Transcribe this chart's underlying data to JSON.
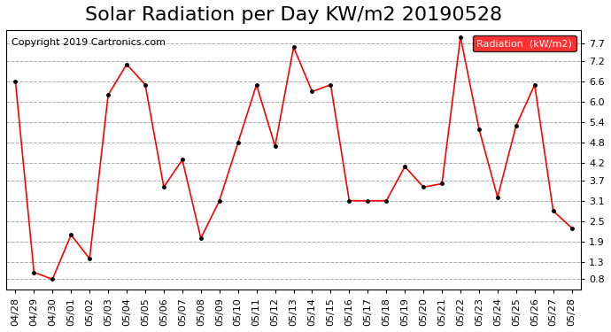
{
  "title": "Solar Radiation per Day KW/m2 20190528",
  "copyright": "Copyright 2019 Cartronics.com",
  "legend_label": "Radiation  (kW/m2)",
  "dates": [
    "04/28",
    "04/29",
    "04/30",
    "05/01",
    "05/02",
    "05/03",
    "05/04",
    "05/05",
    "05/06",
    "05/07",
    "05/08",
    "05/09",
    "05/10",
    "05/11",
    "05/12",
    "05/13",
    "05/14",
    "05/15",
    "05/16",
    "05/17",
    "05/18",
    "05/19",
    "05/20",
    "05/21",
    "05/22",
    "05/23",
    "05/24",
    "05/25",
    "05/26",
    "05/27",
    "05/28"
  ],
  "values": [
    6.6,
    1.0,
    0.8,
    2.1,
    1.4,
    6.2,
    7.1,
    6.5,
    3.5,
    4.3,
    2.0,
    3.1,
    4.8,
    6.5,
    4.7,
    7.6,
    6.3,
    6.5,
    3.1,
    3.1,
    3.1,
    4.1,
    3.5,
    3.6,
    7.9,
    5.2,
    3.2,
    5.3,
    6.5,
    2.8,
    2.3
  ],
  "line_color": "red",
  "marker_color": "black",
  "grid_color": "#aaaaaa",
  "bg_color": "white",
  "legend_bg": "red",
  "legend_text_color": "white",
  "yticks": [
    0.8,
    1.3,
    1.9,
    2.5,
    3.1,
    3.7,
    4.2,
    4.8,
    5.4,
    6.0,
    6.6,
    7.2,
    7.7
  ],
  "ylim": [
    0.5,
    8.1
  ],
  "title_fontsize": 16,
  "tick_fontsize": 8,
  "copyright_fontsize": 8
}
